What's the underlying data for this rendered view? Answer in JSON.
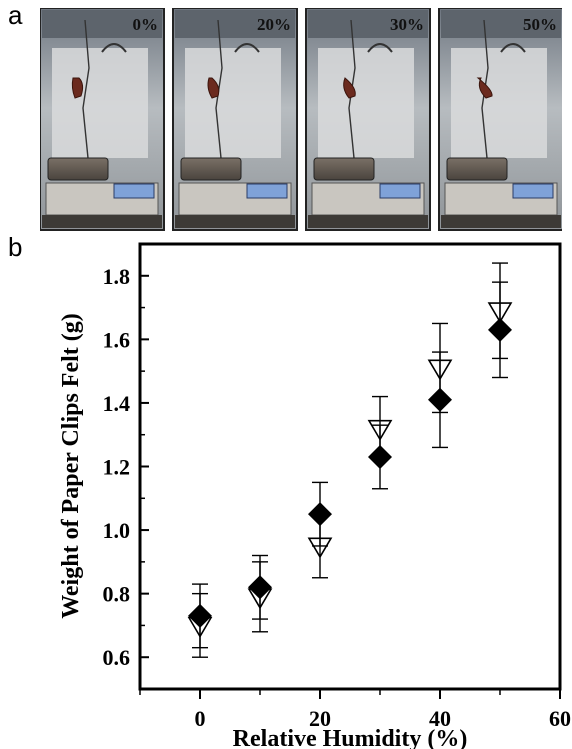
{
  "panels": {
    "a": "a",
    "b": "b"
  },
  "photo_labels": [
    "0%",
    "20%",
    "30%",
    "50%"
  ],
  "chart_data": {
    "type": "scatter",
    "xlabel": "Relative Humidity (%)",
    "ylabel": "Weight of Paper Clips Felt (g)",
    "xlim": [
      -10,
      60
    ],
    "ylim": [
      0.5,
      1.9
    ],
    "xticks": [
      0,
      20,
      40,
      60
    ],
    "xticklabels": [
      "0",
      "20",
      "40",
      "60"
    ],
    "yticks": [
      0.6,
      0.8,
      1.0,
      1.2,
      1.4,
      1.6,
      1.8
    ],
    "yticklabels": [
      "0.6",
      "0.8",
      "1.0",
      "1.2",
      "1.4",
      "1.6",
      "1.8"
    ],
    "grid": false,
    "series": [
      {
        "marker": "diamond-filled",
        "x": [
          0,
          10,
          20,
          30,
          40,
          50
        ],
        "y": [
          0.73,
          0.82,
          1.05,
          1.23,
          1.41,
          1.63
        ],
        "error": [
          0.1,
          0.1,
          0.1,
          0.1,
          0.15,
          0.15
        ]
      },
      {
        "marker": "triangle-down-open",
        "x": [
          0,
          10,
          20,
          30,
          40,
          50
        ],
        "y": [
          0.7,
          0.79,
          0.95,
          1.32,
          1.51,
          1.69
        ],
        "error": [
          0.1,
          0.11,
          0.1,
          0.1,
          0.14,
          0.15
        ]
      }
    ]
  }
}
